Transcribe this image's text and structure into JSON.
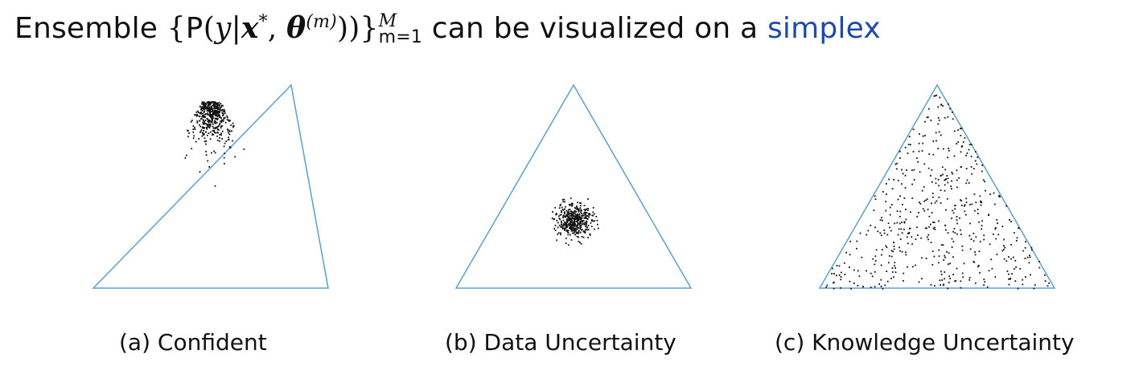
{
  "title": {
    "prefix": "Ensemble",
    "brace_open": "{",
    "P": "P",
    "paren_open": "(",
    "y": "y",
    "bar": "|",
    "x": "x",
    "star": "*",
    "comma": ", ",
    "theta": "θ",
    "theta_sup": "(m)",
    "paren_close": "))",
    "brace_close": "}",
    "upper": "M",
    "lower": "m=1",
    "suffix": "can be visualized on a",
    "link": "simplex"
  },
  "panels": [
    {
      "caption": "(a) Confident",
      "distribution": "concentrated near top vertex"
    },
    {
      "caption": "(b) Data Uncertainty",
      "distribution": "concentrated at centre"
    },
    {
      "caption": "(c) Knowledge Uncertainty",
      "distribution": "spread across simplex"
    }
  ],
  "colors": {
    "triangle": "#5a9fcf",
    "points": "#111111",
    "link": "#1f4aa8"
  }
}
